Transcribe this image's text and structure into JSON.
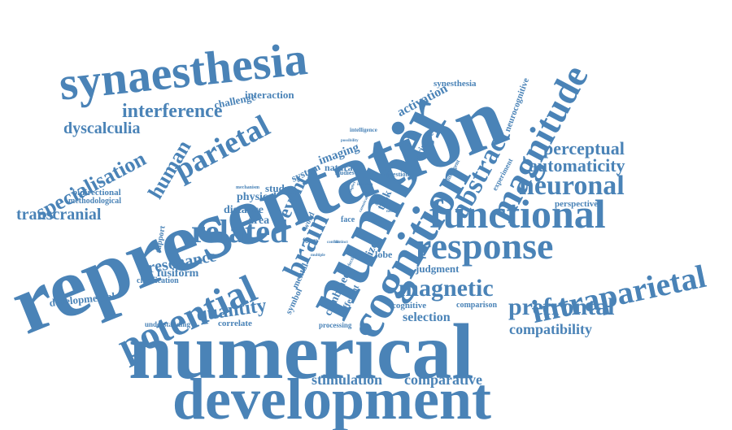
{
  "colors": {
    "word": "#4a83b7",
    "background": "#ffffff"
  },
  "words": {
    "representation": "representation",
    "numerical": "numerical",
    "development": "development",
    "number": "number",
    "synaesthesia": "synaesthesia",
    "cognition": "cognition",
    "functional": "functional",
    "magnitude": "magnitude",
    "response": "response",
    "intraparietal": "intraparietal",
    "potential": "potential",
    "abstract": "abstract",
    "related": "related",
    "neuronal": "neuronal",
    "parietal": "parietal",
    "prefrontal": "prefrontal",
    "magnetic": "magnetic",
    "brain": "brain",
    "specialisation": "specialisation",
    "perceptual": "perceptual",
    "automaticity": "automaticity",
    "interference": "interference",
    "human": "human",
    "dyscalculia": "dyscalculia",
    "event": "event",
    "quantity": "quantity",
    "resonance": "resonance",
    "transcranial": "transcranial",
    "stimulation": "stimulation",
    "comparative": "comparative",
    "compatibility": "compatibility",
    "selection": "selection",
    "activation": "activation",
    "challenge": "challenge",
    "interaction": "interaction",
    "synesthesia": "synesthesia",
    "neurocognitive": "neurocognitive",
    "primate": "primate",
    "intelligence": "intelligence",
    "perspective": "perspective",
    "imaging": "imaging",
    "system": "system",
    "natural": "natural",
    "study": "study",
    "physical": "physical",
    "distance": "distance",
    "area": "area",
    "bidirectional": "bidirectional",
    "methodological": "methodological",
    "support": "support",
    "fusiform": "fusiform",
    "clarification": "clarification",
    "developmental": "developmental",
    "understanding": "understanding",
    "correlate": "correlate",
    "processing": "processing",
    "cognitive": "cognitive",
    "comparison": "comparison",
    "judgment": "judgment",
    "combined": "combined",
    "different": "different",
    "symbol": "symbol",
    "mental": "mental",
    "size": "size",
    "lobe": "lobe",
    "face": "face",
    "form": "form",
    "word": "word",
    "task": "task",
    "studies": "studies",
    "question": "question",
    "experiment": "experiment",
    "intelligent": "intelligent",
    "mechanism": "mechanism",
    "initiation": "initiation",
    "possibility": "possibility",
    "neural": "neural",
    "spatial": "spatial",
    "selecting": "selecting",
    "multiple": "multiple",
    "distinct": "distinct",
    "conflict": "conflict",
    "optimal": "optimal",
    "canonical": "canonical",
    "complex": "complex",
    "basis": "basis",
    "fMRI": "fMRI"
  }
}
